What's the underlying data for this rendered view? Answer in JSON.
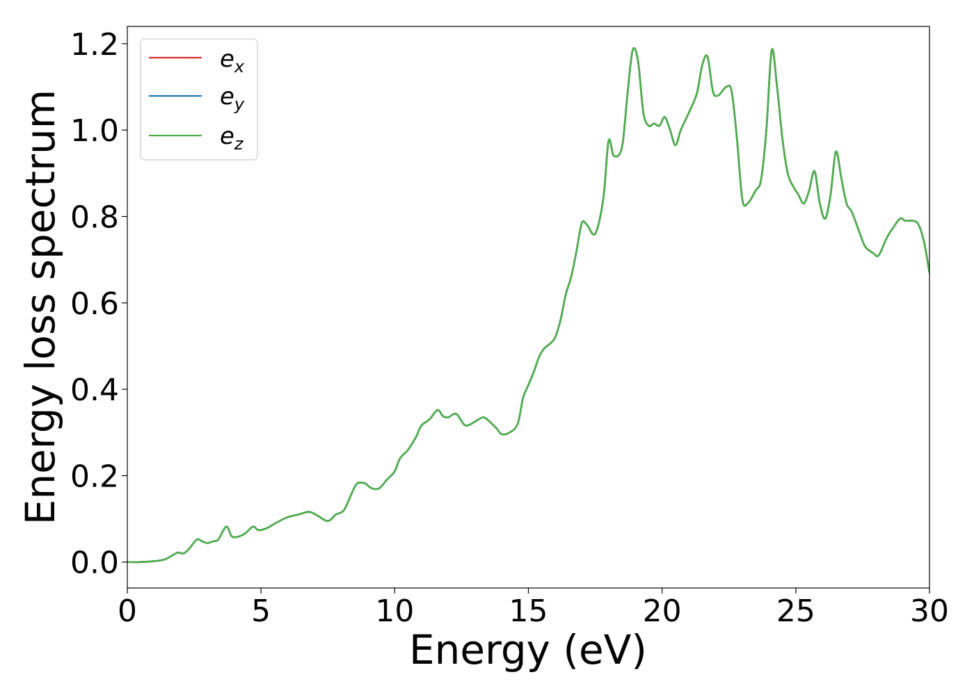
{
  "chart_data": {
    "type": "line",
    "title": "",
    "xlabel": "Energy (eV)",
    "ylabel": "Energy loss spectrum",
    "xlim": [
      0,
      30
    ],
    "ylim": [
      -0.06,
      1.24
    ],
    "xticks": [
      0,
      5,
      10,
      15,
      20,
      25,
      30
    ],
    "yticks": [
      0.0,
      0.2,
      0.4,
      0.6,
      0.8,
      1.0,
      1.2
    ],
    "xtick_labels": [
      "0",
      "5",
      "10",
      "15",
      "20",
      "25",
      "30"
    ],
    "ytick_labels": [
      "0.0",
      "0.2",
      "0.4",
      "0.6",
      "0.8",
      "1.0",
      "1.2"
    ],
    "grid": false,
    "legend": {
      "position": "top-left",
      "entries": [
        "e",
        "e",
        "e"
      ],
      "subscripts": [
        "x",
        "y",
        "z"
      ]
    },
    "x": [
      0,
      0.5,
      1.0,
      1.4,
      1.7,
      1.9,
      2.1,
      2.3,
      2.6,
      2.8,
      3.0,
      3.2,
      3.4,
      3.7,
      3.9,
      4.1,
      4.4,
      4.7,
      4.9,
      5.2,
      5.6,
      6.0,
      6.4,
      6.8,
      7.1,
      7.5,
      7.8,
      8.1,
      8.4,
      8.6,
      8.9,
      9.1,
      9.4,
      9.7,
      10.0,
      10.2,
      10.5,
      10.8,
      11.0,
      11.3,
      11.6,
      11.8,
      12.0,
      12.3,
      12.6,
      12.8,
      13.0,
      13.3,
      13.5,
      13.8,
      14.0,
      14.3,
      14.6,
      14.8,
      15.0,
      15.2,
      15.4,
      15.6,
      15.8,
      16.0,
      16.2,
      16.4,
      16.6,
      16.8,
      17.0,
      17.2,
      17.5,
      17.8,
      18.0,
      18.2,
      18.5,
      18.7,
      18.9,
      19.1,
      19.3,
      19.5,
      19.7,
      19.9,
      20.1,
      20.3,
      20.5,
      20.7,
      21.0,
      21.3,
      21.5,
      21.7,
      21.9,
      22.1,
      22.4,
      22.6,
      22.8,
      23.0,
      23.2,
      23.5,
      23.7,
      23.9,
      24.1,
      24.3,
      24.5,
      24.7,
      24.9,
      25.1,
      25.3,
      25.5,
      25.7,
      25.9,
      26.1,
      26.3,
      26.5,
      26.7,
      26.9,
      27.1,
      27.4,
      27.6,
      27.9,
      28.1,
      28.4,
      28.6,
      28.9,
      29.1,
      29.4,
      29.6,
      29.8,
      30.0
    ],
    "series": [
      {
        "name": "e_x",
        "color": "#d62728",
        "values": [
          0.0,
          0.0,
          0.002,
          0.006,
          0.016,
          0.022,
          0.02,
          0.03,
          0.052,
          0.048,
          0.044,
          0.048,
          0.052,
          0.082,
          0.06,
          0.058,
          0.066,
          0.082,
          0.074,
          0.078,
          0.092,
          0.104,
          0.11,
          0.116,
          0.108,
          0.095,
          0.11,
          0.12,
          0.16,
          0.182,
          0.182,
          0.172,
          0.17,
          0.19,
          0.21,
          0.24,
          0.26,
          0.29,
          0.316,
          0.33,
          0.352,
          0.338,
          0.335,
          0.343,
          0.318,
          0.318,
          0.325,
          0.335,
          0.328,
          0.31,
          0.296,
          0.3,
          0.32,
          0.38,
          0.41,
          0.44,
          0.475,
          0.495,
          0.505,
          0.52,
          0.56,
          0.62,
          0.66,
          0.72,
          0.785,
          0.78,
          0.76,
          0.84,
          0.975,
          0.94,
          0.96,
          1.08,
          1.185,
          1.16,
          1.04,
          1.01,
          1.015,
          1.01,
          1.03,
          1.0,
          0.965,
          1.0,
          1.04,
          1.085,
          1.15,
          1.17,
          1.09,
          1.08,
          1.1,
          1.09,
          0.98,
          0.84,
          0.83,
          0.86,
          0.885,
          1.0,
          1.185,
          1.1,
          0.98,
          0.9,
          0.87,
          0.85,
          0.83,
          0.86,
          0.905,
          0.83,
          0.795,
          0.85,
          0.95,
          0.89,
          0.83,
          0.81,
          0.76,
          0.73,
          0.715,
          0.71,
          0.75,
          0.77,
          0.795,
          0.79,
          0.79,
          0.78,
          0.74,
          0.67
        ]
      },
      {
        "name": "e_y",
        "color": "#1f77b4",
        "values": [
          0.0,
          0.0,
          0.002,
          0.006,
          0.016,
          0.022,
          0.02,
          0.03,
          0.052,
          0.048,
          0.044,
          0.048,
          0.052,
          0.082,
          0.06,
          0.058,
          0.066,
          0.082,
          0.074,
          0.078,
          0.092,
          0.104,
          0.11,
          0.116,
          0.108,
          0.095,
          0.11,
          0.12,
          0.16,
          0.182,
          0.182,
          0.172,
          0.17,
          0.19,
          0.21,
          0.24,
          0.26,
          0.29,
          0.316,
          0.33,
          0.352,
          0.338,
          0.335,
          0.343,
          0.318,
          0.318,
          0.325,
          0.335,
          0.328,
          0.31,
          0.296,
          0.3,
          0.32,
          0.38,
          0.41,
          0.44,
          0.475,
          0.495,
          0.505,
          0.52,
          0.56,
          0.62,
          0.66,
          0.72,
          0.785,
          0.78,
          0.76,
          0.84,
          0.975,
          0.94,
          0.96,
          1.08,
          1.185,
          1.16,
          1.04,
          1.01,
          1.015,
          1.01,
          1.03,
          1.0,
          0.965,
          1.0,
          1.04,
          1.085,
          1.15,
          1.17,
          1.09,
          1.08,
          1.1,
          1.09,
          0.98,
          0.84,
          0.83,
          0.86,
          0.885,
          1.0,
          1.185,
          1.1,
          0.98,
          0.9,
          0.87,
          0.85,
          0.83,
          0.86,
          0.905,
          0.83,
          0.795,
          0.85,
          0.95,
          0.89,
          0.83,
          0.81,
          0.76,
          0.73,
          0.715,
          0.71,
          0.75,
          0.77,
          0.795,
          0.79,
          0.79,
          0.78,
          0.74,
          0.67
        ]
      },
      {
        "name": "e_z",
        "color": "#4daf4a",
        "values": [
          0.0,
          0.0,
          0.002,
          0.006,
          0.016,
          0.022,
          0.02,
          0.03,
          0.052,
          0.048,
          0.044,
          0.048,
          0.052,
          0.082,
          0.06,
          0.058,
          0.066,
          0.082,
          0.074,
          0.078,
          0.092,
          0.104,
          0.11,
          0.116,
          0.108,
          0.095,
          0.11,
          0.12,
          0.16,
          0.182,
          0.182,
          0.172,
          0.17,
          0.19,
          0.21,
          0.24,
          0.26,
          0.29,
          0.316,
          0.33,
          0.352,
          0.338,
          0.335,
          0.343,
          0.318,
          0.318,
          0.325,
          0.335,
          0.328,
          0.31,
          0.296,
          0.3,
          0.32,
          0.38,
          0.41,
          0.44,
          0.475,
          0.495,
          0.505,
          0.52,
          0.56,
          0.62,
          0.66,
          0.72,
          0.785,
          0.78,
          0.76,
          0.84,
          0.975,
          0.94,
          0.96,
          1.08,
          1.185,
          1.16,
          1.04,
          1.01,
          1.015,
          1.01,
          1.03,
          1.0,
          0.965,
          1.0,
          1.04,
          1.085,
          1.15,
          1.17,
          1.09,
          1.08,
          1.1,
          1.09,
          0.98,
          0.84,
          0.83,
          0.86,
          0.885,
          1.0,
          1.185,
          1.1,
          0.98,
          0.9,
          0.87,
          0.85,
          0.83,
          0.86,
          0.905,
          0.83,
          0.795,
          0.85,
          0.95,
          0.89,
          0.83,
          0.81,
          0.76,
          0.73,
          0.715,
          0.71,
          0.75,
          0.77,
          0.795,
          0.79,
          0.79,
          0.78,
          0.74,
          0.67
        ]
      }
    ]
  }
}
